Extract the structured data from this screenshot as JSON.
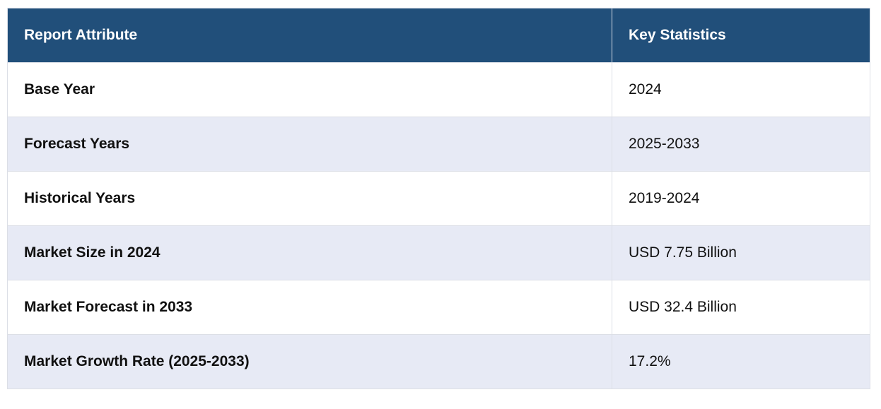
{
  "table": {
    "header": [
      "Report Attribute",
      "Key Statistics"
    ],
    "rows": [
      [
        "Base Year",
        "2024"
      ],
      [
        "Forecast Years",
        "2025-2033"
      ],
      [
        "Historical Years",
        "2019-2024"
      ],
      [
        "Market Size in 2024",
        "USD 7.75 Billion"
      ],
      [
        "Market Forecast in 2033",
        "USD 32.4 Billion"
      ],
      [
        "Market Growth Rate (2025-2033)",
        "17.2%"
      ]
    ]
  }
}
